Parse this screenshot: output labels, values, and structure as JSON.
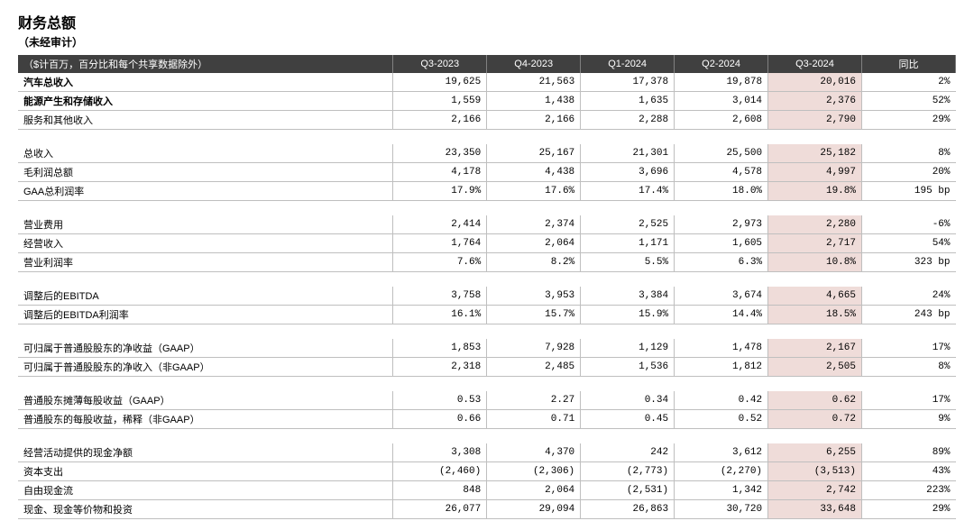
{
  "title": "财务总额",
  "subtitle": "（未经审计）",
  "header": {
    "label": "（$计百万，百分比和每个共享数据除外）",
    "cols": [
      "Q3-2023",
      "Q4-2023",
      "Q1-2024",
      "Q2-2024",
      "Q3-2024",
      "同比"
    ]
  },
  "rows": [
    {
      "type": "row",
      "bold": true,
      "label": "汽车总收入",
      "v": [
        "19,625",
        "21,563",
        "17,378",
        "19,878",
        "20,016",
        "2%"
      ],
      "hl": 4
    },
    {
      "type": "row",
      "bold": true,
      "label": "能源产生和存储收入",
      "v": [
        "1,559",
        "1,438",
        "1,635",
        "3,014",
        "2,376",
        "52%"
      ],
      "hl": 4
    },
    {
      "type": "row",
      "label": "服务和其他收入",
      "v": [
        "2,166",
        "2,166",
        "2,288",
        "2,608",
        "2,790",
        "29%"
      ],
      "hl": 4
    },
    {
      "type": "spacer"
    },
    {
      "type": "row",
      "label": "总收入",
      "v": [
        "23,350",
        "25,167",
        "21,301",
        "25,500",
        "25,182",
        "8%"
      ],
      "hl": 4
    },
    {
      "type": "row",
      "label": "毛利润总额",
      "v": [
        "4,178",
        "4,438",
        "3,696",
        "4,578",
        "4,997",
        "20%"
      ],
      "hl": 4
    },
    {
      "type": "row",
      "label": "GAA总利润率",
      "v": [
        "17.9%",
        "17.6%",
        "17.4%",
        "18.0%",
        "19.8%",
        "195 bp"
      ],
      "hl": 4
    },
    {
      "type": "spacer"
    },
    {
      "type": "row",
      "label": "营业费用",
      "v": [
        "2,414",
        "2,374",
        "2,525",
        "2,973",
        "2,280",
        "-6%"
      ],
      "hl": 4
    },
    {
      "type": "row",
      "label": "经营收入",
      "v": [
        "1,764",
        "2,064",
        "1,171",
        "1,605",
        "2,717",
        "54%"
      ],
      "hl": 4
    },
    {
      "type": "row",
      "label": "营业利润率",
      "v": [
        "7.6%",
        "8.2%",
        "5.5%",
        "6.3%",
        "10.8%",
        "323 bp"
      ],
      "hl": 4
    },
    {
      "type": "spacer"
    },
    {
      "type": "row",
      "label": "调整后的EBITDA",
      "v": [
        "3,758",
        "3,953",
        "3,384",
        "3,674",
        "4,665",
        "24%"
      ],
      "hl": 4
    },
    {
      "type": "row",
      "label": "调整后的EBITDA利润率",
      "v": [
        "16.1%",
        "15.7%",
        "15.9%",
        "14.4%",
        "18.5%",
        "243 bp"
      ],
      "hl": 4
    },
    {
      "type": "spacer"
    },
    {
      "type": "row",
      "label": "可归属于普通股股东的净收益（GAAP）",
      "v": [
        "1,853",
        "7,928",
        "1,129",
        "1,478",
        "2,167",
        "17%"
      ],
      "hl": 4
    },
    {
      "type": "row",
      "label": "可归属于普通股股东的净收入（非GAAP）",
      "v": [
        "2,318",
        "2,485",
        "1,536",
        "1,812",
        "2,505",
        "8%"
      ],
      "hl": 4
    },
    {
      "type": "spacer"
    },
    {
      "type": "row",
      "label": "普通股东摊薄每股收益（GAAP）",
      "v": [
        "0.53",
        "2.27",
        "0.34",
        "0.42",
        "0.62",
        "17%"
      ],
      "hl": 4
    },
    {
      "type": "row",
      "label": "普通股东的每股收益，稀释（非GAAP）",
      "v": [
        "0.66",
        "0.71",
        "0.45",
        "0.52",
        "0.72",
        "9%"
      ],
      "hl": 4
    },
    {
      "type": "spacer"
    },
    {
      "type": "row",
      "label": "经营活动提供的现金净额",
      "v": [
        "3,308",
        "4,370",
        "242",
        "3,612",
        "6,255",
        "89%"
      ],
      "hl": 4
    },
    {
      "type": "row",
      "label": "资本支出",
      "v": [
        "(2,460)",
        "(2,306)",
        "(2,773)",
        "(2,270)",
        "(3,513)",
        "43%"
      ],
      "hl": 4
    },
    {
      "type": "row",
      "label": "自由现金流",
      "v": [
        "848",
        "2,064",
        "(2,531)",
        "1,342",
        "2,742",
        "223%"
      ],
      "hl": 4
    },
    {
      "type": "row",
      "label": "现金、现金等价物和投资",
      "v": [
        "26,077",
        "29,094",
        "26,863",
        "30,720",
        "33,648",
        "29%"
      ],
      "hl": 4
    }
  ],
  "style": {
    "header_bg": "#404040",
    "header_fg": "#ffffff",
    "border_color": "#bfbfbf",
    "highlight_bg": "#efdcd9",
    "font_size_body": 11,
    "font_size_title": 16
  }
}
